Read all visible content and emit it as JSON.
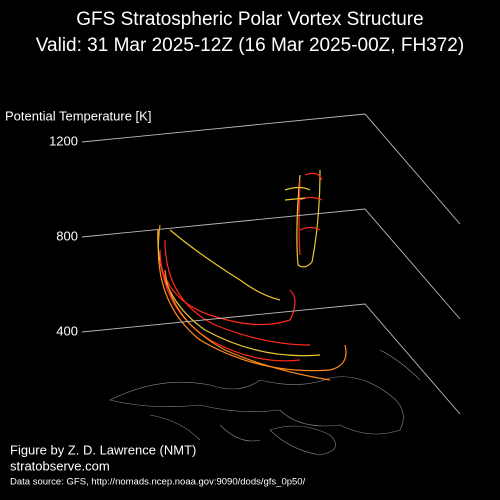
{
  "chart_data": {
    "type": "surface3d",
    "title": "GFS Stratospheric Polar Vortex Structure",
    "subtitle": "Valid: 31 Mar 2025-12Z  (16 Mar 2025-00Z, FH372)",
    "zlabel": "Potential Temperature [K]",
    "zlim": [
      400,
      1200
    ],
    "zticks": [
      400,
      800,
      1200
    ],
    "annotations": [
      "Figure by Z. D. Lawrence (NMT)",
      "stratobserve.com",
      "Data source: GFS, http://nomads.ncep.noaa.gov:9090/dods/gfs_0p50/"
    ]
  }
}
